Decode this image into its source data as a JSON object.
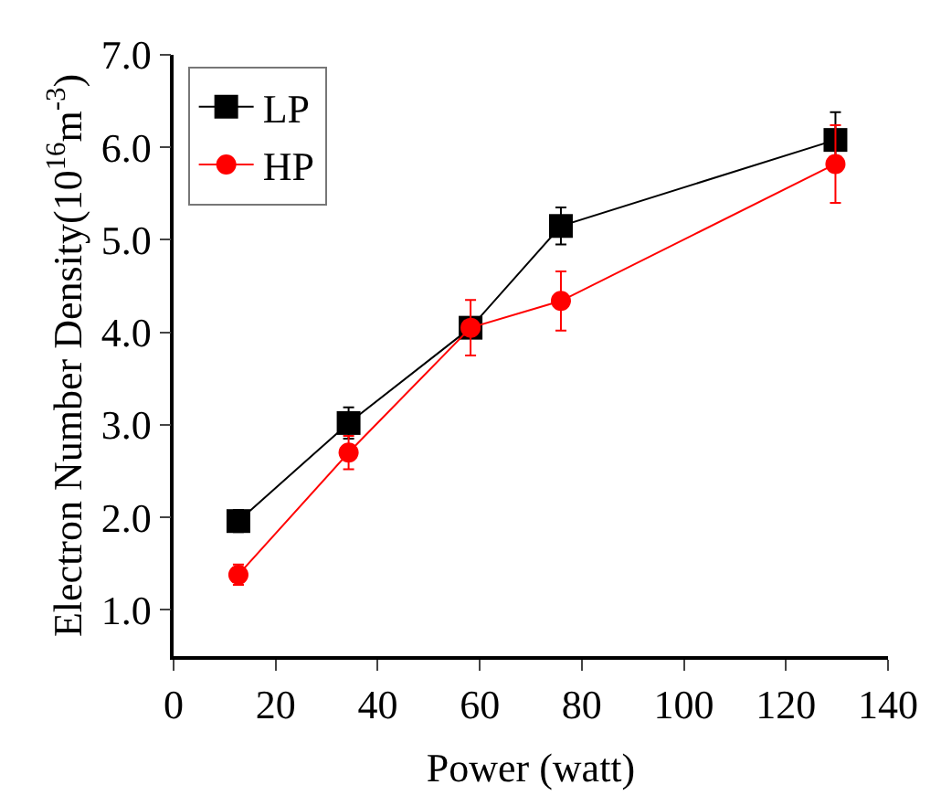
{
  "chart_data": {
    "type": "line",
    "xlabel": "Power (watt)",
    "ylabel": "Electron Number Density(10$^{16}$m$^{-3}$)",
    "xlim": [
      0,
      140
    ],
    "xticks": [
      0,
      20,
      40,
      60,
      80,
      100,
      120,
      140
    ],
    "ylim": [
      0.5,
      7.0
    ],
    "yticks": [
      {
        "value": 1,
        "label": "1.0"
      },
      {
        "value": 2,
        "label": "2.0"
      },
      {
        "value": 3,
        "label": "3.0"
      },
      {
        "value": 4,
        "label": "4.0"
      },
      {
        "value": 5,
        "label": "5.0"
      },
      {
        "value": 6,
        "label": "6.0"
      },
      {
        "value": 7,
        "label": "7.0"
      }
    ],
    "legend": "top left",
    "series": [
      {
        "name": "LP",
        "color": "#000000",
        "marker": "square",
        "x": [
          12.7,
          34.3,
          58.2,
          75.9,
          129.7
        ],
        "values": [
          1.96,
          3.02,
          4.05,
          5.15,
          6.08
        ],
        "errors": [
          0.12,
          0.17,
          null,
          0.2,
          0.3
        ]
      },
      {
        "name": "HP",
        "color": "#ff0000",
        "marker": "circle",
        "x": [
          12.7,
          34.3,
          58.2,
          75.9,
          129.7
        ],
        "values": [
          1.38,
          2.7,
          4.05,
          4.34,
          5.82
        ],
        "errors": [
          0.11,
          0.18,
          0.3,
          0.32,
          0.42
        ]
      }
    ]
  }
}
